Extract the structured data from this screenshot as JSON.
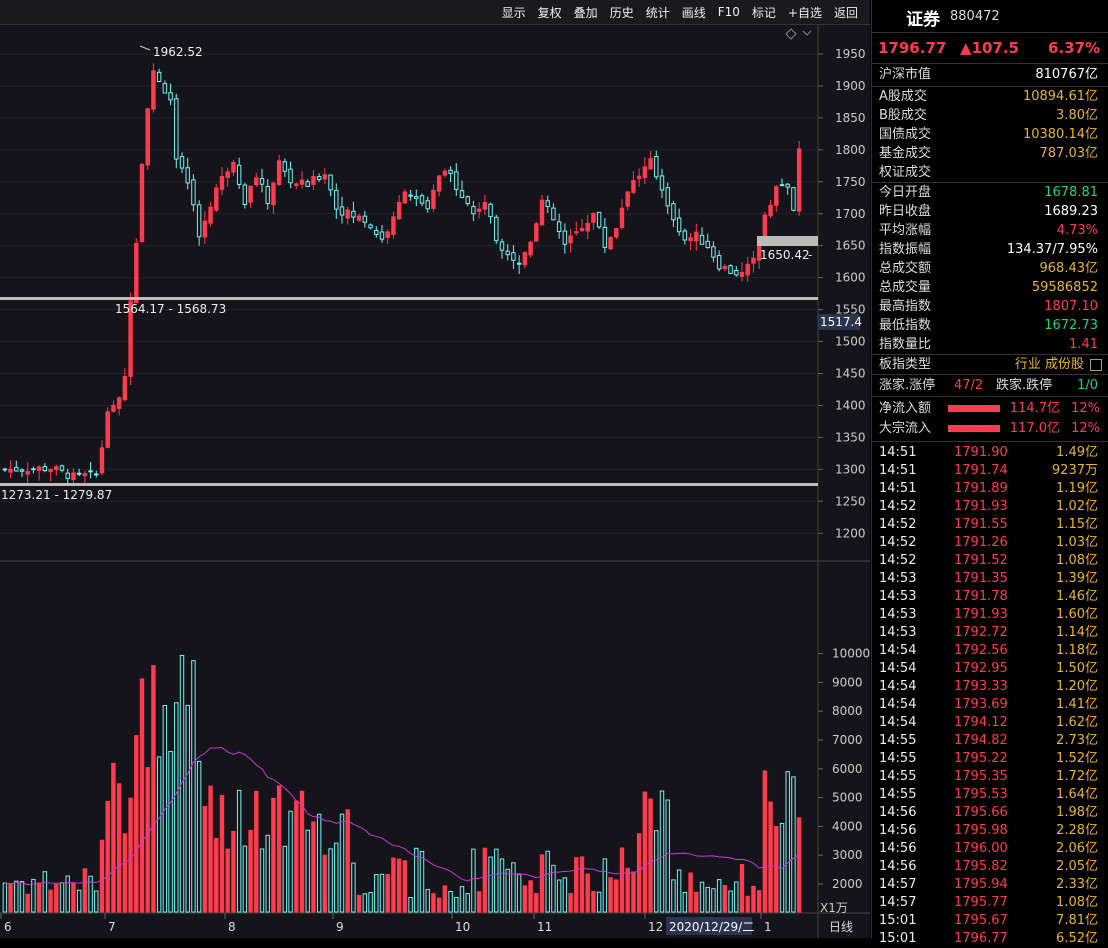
{
  "toolbar": {
    "buttons": [
      "显示",
      "复权",
      "叠加",
      "历史",
      "统计",
      "画线",
      "F10",
      "标记",
      "+自选",
      "返回"
    ]
  },
  "chart": {
    "price_axis": [
      "1950",
      "1900",
      "1850",
      "1800",
      "1750",
      "1700",
      "1650",
      "1600",
      "1550",
      "1500",
      "1450",
      "1400",
      "1350",
      "1300",
      "1250",
      "1200"
    ],
    "volume_axis": [
      "10000",
      "9000",
      "8000",
      "7000",
      "6000",
      "5000",
      "4000",
      "3000",
      "2000"
    ],
    "volume_unit": "X1万",
    "date_axis": [
      "6",
      "7",
      "8",
      "9",
      "10",
      "11",
      "12",
      "1"
    ],
    "cursor_date": "2020/12/29/二",
    "period": "日线",
    "high_label": "1962.52",
    "right_box_label": "1650.42",
    "right_box_tick": "-",
    "cursor_price": "1517.4",
    "zone_upper": "1564.17 - 1568.73",
    "zone_lower": "1273.21 - 1279.87",
    "colors": {
      "up": "#ff3b4e",
      "down": "#6ff6f6",
      "ma": "#c23bd6"
    }
  },
  "side": {
    "name": "证券",
    "code": "880472",
    "price": "1796.77",
    "change": "▲107.5",
    "change_pct": "6.37%",
    "market_cap": {
      "label": "沪深市值",
      "value": "810767亿"
    },
    "stats": [
      {
        "label": "A股成交",
        "value": "10894.61亿",
        "color": "yellow"
      },
      {
        "label": "B股成交",
        "value": "3.80亿",
        "color": "yellow"
      },
      {
        "label": "国债成交",
        "value": "10380.14亿",
        "color": "yellow"
      },
      {
        "label": "基金成交",
        "value": "787.03亿",
        "color": "yellow"
      },
      {
        "label": "权证成交",
        "value": "",
        "color": "yellow"
      }
    ],
    "stats2": [
      {
        "label": "今日开盘",
        "value": "1678.81",
        "color": "green"
      },
      {
        "label": "昨日收盘",
        "value": "1689.23",
        "color": "white"
      },
      {
        "label": "平均涨幅",
        "value": "4.73%",
        "color": "red"
      },
      {
        "label": "指数振幅",
        "value": "134.37/7.95%",
        "color": "white"
      },
      {
        "label": "总成交额",
        "value": "968.43亿",
        "color": "yellow"
      },
      {
        "label": "总成交量",
        "value": "59586852",
        "color": "yellow"
      },
      {
        "label": "最高指数",
        "value": "1807.10",
        "color": "red"
      },
      {
        "label": "最低指数",
        "value": "1672.73",
        "color": "green"
      },
      {
        "label": "指数量比",
        "value": "1.41",
        "color": "red"
      }
    ],
    "type_row": {
      "label": "板指类型",
      "value": "行业 成份股"
    },
    "updown": {
      "up_label": "涨家.涨停",
      "up_value": "47/2",
      "down_label": "跌家.跌停",
      "down_value": "1/0"
    },
    "flows": [
      {
        "label": "净流入额",
        "amount": "114.7亿",
        "pct": "12%"
      },
      {
        "label": "大宗流入",
        "amount": "117.0亿",
        "pct": "12%"
      }
    ],
    "ticks": [
      [
        "14:51",
        "1791.90",
        "1.49亿"
      ],
      [
        "14:51",
        "1791.74",
        "9237万"
      ],
      [
        "14:51",
        "1791.89",
        "1.19亿"
      ],
      [
        "14:52",
        "1791.93",
        "1.02亿"
      ],
      [
        "14:52",
        "1791.55",
        "1.15亿"
      ],
      [
        "14:52",
        "1791.26",
        "1.03亿"
      ],
      [
        "14:52",
        "1791.52",
        "1.08亿"
      ],
      [
        "14:53",
        "1791.35",
        "1.39亿"
      ],
      [
        "14:53",
        "1791.78",
        "1.46亿"
      ],
      [
        "14:53",
        "1791.93",
        "1.60亿"
      ],
      [
        "14:53",
        "1792.72",
        "1.14亿"
      ],
      [
        "14:54",
        "1792.56",
        "1.18亿"
      ],
      [
        "14:54",
        "1792.95",
        "1.50亿"
      ],
      [
        "14:54",
        "1793.33",
        "1.20亿"
      ],
      [
        "14:54",
        "1793.69",
        "1.41亿"
      ],
      [
        "14:54",
        "1794.12",
        "1.62亿"
      ],
      [
        "14:55",
        "1794.82",
        "2.73亿"
      ],
      [
        "14:55",
        "1795.22",
        "1.52亿"
      ],
      [
        "14:55",
        "1795.35",
        "1.72亿"
      ],
      [
        "14:55",
        "1795.53",
        "1.64亿"
      ],
      [
        "14:56",
        "1795.66",
        "1.98亿"
      ],
      [
        "14:56",
        "1795.98",
        "2.28亿"
      ],
      [
        "14:56",
        "1796.00",
        "2.06亿"
      ],
      [
        "14:56",
        "1795.82",
        "2.05亿"
      ],
      [
        "14:57",
        "1795.94",
        "2.33亿"
      ],
      [
        "14:57",
        "1795.77",
        "1.08亿"
      ],
      [
        "15:01",
        "1795.67",
        "7.81亿"
      ],
      [
        "15:01",
        "1796.77",
        "6.52亿"
      ]
    ]
  }
}
